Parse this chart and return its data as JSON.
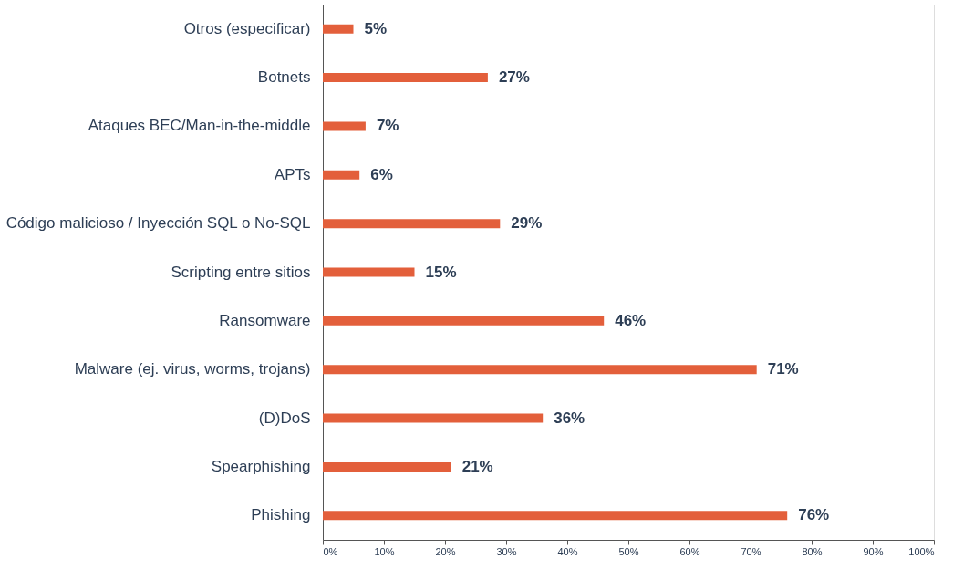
{
  "chart_data": {
    "type": "bar",
    "orientation": "horizontal",
    "categories": [
      "Otros (especificar)",
      "Botnets",
      "Ataques BEC/Man-in-the-middle",
      "APTs",
      "Código malicioso / Inyección SQL o No-SQL",
      "Scripting entre sitios",
      "Ransomware",
      "Malware (ej. virus, worms, trojans)",
      "(D)DoS",
      "Spearphishing",
      "Phishing"
    ],
    "values": [
      5,
      27,
      7,
      6,
      29,
      15,
      46,
      71,
      36,
      21,
      76
    ],
    "value_labels": [
      "5%",
      "27%",
      "7%",
      "6%",
      "29%",
      "15%",
      "46%",
      "71%",
      "36%",
      "21%",
      "76%"
    ],
    "color": "#e35f3b",
    "xlim": [
      0,
      100
    ],
    "xticks": [
      {
        "value": 0,
        "label": "0%"
      },
      {
        "value": 10,
        "label": "10%"
      },
      {
        "value": 20,
        "label": "20%"
      },
      {
        "value": 30,
        "label": "30%"
      },
      {
        "value": 40,
        "label": "40%"
      },
      {
        "value": 50,
        "label": "50%"
      },
      {
        "value": 60,
        "label": "60%"
      },
      {
        "value": 70,
        "label": "70%"
      },
      {
        "value": 80,
        "label": "80%"
      },
      {
        "value": 90,
        "label": "90%"
      },
      {
        "value": 100,
        "label": "100%"
      }
    ],
    "grid": false
  }
}
